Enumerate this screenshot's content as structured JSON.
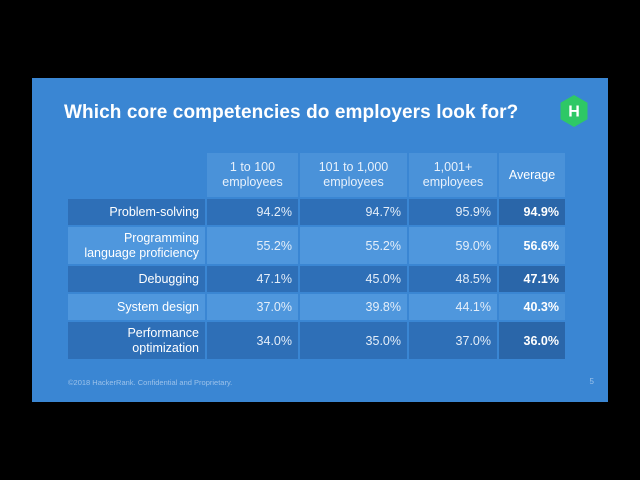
{
  "slide": {
    "title": "Which core competencies do employers look for?",
    "logo_letter": "H",
    "footer": "©2018 HackerRank. Confidential and Proprietary.",
    "page_number": "5"
  },
  "colors": {
    "background": "#000000",
    "slide": "#3a86d3",
    "logo": "#2ec866"
  },
  "chart_data": {
    "type": "table",
    "columns": [
      "1 to 100 employees",
      "101 to 1,000 employees",
      "1,001+ employees",
      "Average"
    ],
    "column_lines": [
      [
        "1 to 100",
        "employees"
      ],
      [
        "101 to 1,000",
        "employees"
      ],
      [
        "1,001+",
        "employees"
      ],
      [
        "Average"
      ]
    ],
    "rows": [
      {
        "label_lines": [
          "Problem-solving"
        ],
        "values": [
          "94.2%",
          "94.7%",
          "95.9%",
          "94.9%"
        ]
      },
      {
        "label_lines": [
          "Programming",
          "language proficiency"
        ],
        "values": [
          "55.2%",
          "55.2%",
          "59.0%",
          "56.6%"
        ]
      },
      {
        "label_lines": [
          "Debugging"
        ],
        "values": [
          "47.1%",
          "45.0%",
          "48.5%",
          "47.1%"
        ]
      },
      {
        "label_lines": [
          "System design"
        ],
        "values": [
          "37.0%",
          "39.8%",
          "44.1%",
          "40.3%"
        ]
      },
      {
        "label_lines": [
          "Performance",
          "optimization"
        ],
        "values": [
          "34.0%",
          "35.0%",
          "37.0%",
          "36.0%"
        ]
      }
    ]
  }
}
